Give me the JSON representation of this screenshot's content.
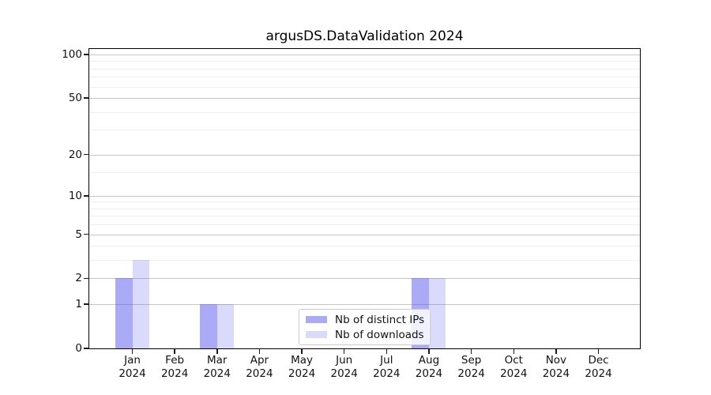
{
  "chart_data": {
    "type": "bar",
    "title": "argusDS.DataValidation 2024",
    "categories": [
      "Jan",
      "Feb",
      "Mar",
      "Apr",
      "May",
      "Jun",
      "Jul",
      "Aug",
      "Sep",
      "Oct",
      "Nov",
      "Dec"
    ],
    "year_label": "2024",
    "series": [
      {
        "name": "Nb of distinct IPs",
        "color": "rgba(85,85,240,0.5)",
        "values": [
          2,
          0,
          1,
          0,
          0,
          0,
          0,
          2,
          0,
          0,
          0,
          0
        ]
      },
      {
        "name": "Nb of downloads",
        "color": "rgba(85,85,240,0.22)",
        "values": [
          3,
          0,
          1,
          0,
          0,
          0,
          0,
          2,
          0,
          0,
          0,
          0
        ]
      }
    ],
    "y_axis": {
      "scale": "log10(1+v)",
      "major_ticks": [
        0,
        1,
        2,
        5,
        10,
        20,
        50,
        100
      ],
      "minor_ticks": [
        3,
        4,
        6,
        7,
        8,
        9,
        15,
        30,
        40,
        60,
        70,
        80,
        90
      ],
      "ylim": [
        0,
        109
      ]
    },
    "x_axis": {
      "tick_label_lines": 2
    },
    "legend": {
      "position": "inside-bottom-center",
      "frame": true
    },
    "grid": true,
    "colors": {
      "bar_base": "#5555f0",
      "grid_major": "#c6c6c6",
      "grid_minor": "#ededed",
      "spine": "#000000"
    }
  }
}
